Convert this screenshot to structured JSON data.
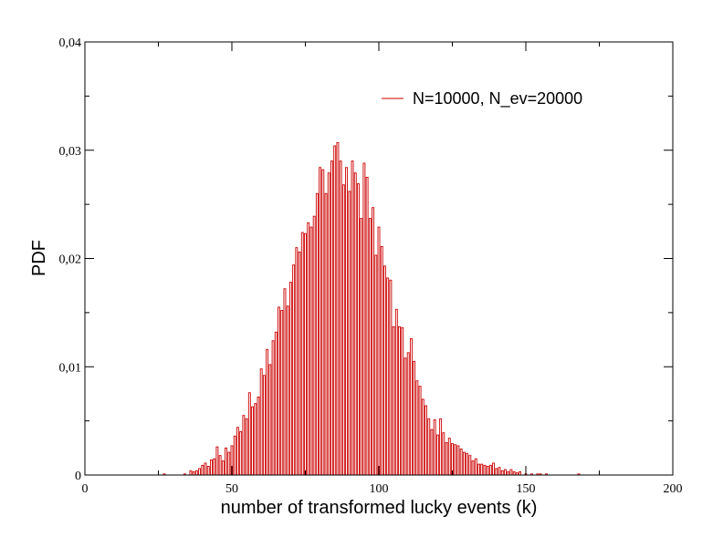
{
  "chart_data": {
    "type": "bar",
    "title": "",
    "xlabel": "number of transformed lucky events (k)",
    "ylabel": "PDF",
    "xlim": [
      0,
      200
    ],
    "ylim": [
      0,
      0.04
    ],
    "x_ticks": [
      0,
      50,
      100,
      150,
      200
    ],
    "x_tick_labels": [
      "0",
      "50",
      "100",
      "150",
      "200"
    ],
    "y_ticks": [
      0,
      0.01,
      0.02,
      0.03,
      0.04
    ],
    "y_tick_labels": [
      "0",
      "0,01",
      "0,02",
      "0,03",
      "0,04"
    ],
    "grid": false,
    "legend_position": "top-right",
    "bar_color": "#cc0000",
    "series": [
      {
        "name": "N=10000, N_ev=20000",
        "x": [
          27,
          34,
          36,
          37,
          38,
          39,
          40,
          41,
          42,
          43,
          44,
          45,
          46,
          47,
          48,
          49,
          50,
          51,
          52,
          53,
          54,
          55,
          56,
          57,
          58,
          59,
          60,
          61,
          62,
          63,
          64,
          65,
          66,
          67,
          68,
          69,
          70,
          71,
          72,
          73,
          74,
          75,
          76,
          77,
          78,
          79,
          80,
          81,
          82,
          83,
          84,
          85,
          86,
          87,
          88,
          89,
          90,
          91,
          92,
          93,
          94,
          95,
          96,
          97,
          98,
          99,
          100,
          101,
          102,
          103,
          104,
          105,
          106,
          107,
          108,
          109,
          110,
          111,
          112,
          113,
          114,
          115,
          116,
          117,
          118,
          119,
          120,
          121,
          122,
          123,
          124,
          125,
          126,
          127,
          128,
          129,
          130,
          131,
          132,
          133,
          134,
          135,
          136,
          137,
          138,
          139,
          140,
          141,
          142,
          143,
          144,
          145,
          146,
          147,
          148,
          150,
          152,
          154,
          155,
          157,
          168
        ],
        "values": [
          0.0001,
          0.0001,
          0.0004,
          0.0003,
          0.0004,
          0.0006,
          0.0009,
          0.0011,
          0.0008,
          0.0014,
          0.0015,
          0.0026,
          0.0018,
          0.0013,
          0.0025,
          0.0021,
          0.0027,
          0.0036,
          0.0044,
          0.004,
          0.0055,
          0.0052,
          0.0076,
          0.0063,
          0.0066,
          0.0072,
          0.0098,
          0.0092,
          0.0116,
          0.0102,
          0.0124,
          0.0132,
          0.0155,
          0.0152,
          0.0172,
          0.0156,
          0.0178,
          0.0194,
          0.021,
          0.0206,
          0.0224,
          0.0223,
          0.0233,
          0.0229,
          0.0239,
          0.026,
          0.0284,
          0.0282,
          0.026,
          0.0279,
          0.029,
          0.0304,
          0.0307,
          0.029,
          0.0268,
          0.0284,
          0.0262,
          0.029,
          0.0279,
          0.0269,
          0.0237,
          0.0288,
          0.0275,
          0.0237,
          0.0247,
          0.0203,
          0.0229,
          0.0211,
          0.0193,
          0.0182,
          0.018,
          0.0137,
          0.0153,
          0.0137,
          0.0136,
          0.0108,
          0.0113,
          0.0126,
          0.0105,
          0.0087,
          0.0082,
          0.007,
          0.0064,
          0.0052,
          0.0042,
          0.0051,
          0.0037,
          0.0052,
          0.0039,
          0.003,
          0.0034,
          0.0029,
          0.0028,
          0.0027,
          0.0024,
          0.0021,
          0.002,
          0.0018,
          0.0013,
          0.0015,
          0.001,
          0.001,
          0.0009,
          0.0008,
          0.0009,
          0.0011,
          0.0006,
          0.0007,
          0.0004,
          0.0005,
          0.0003,
          0.0005,
          0.0003,
          0.0002,
          0.0003,
          0.0001,
          0.0001,
          0.0001,
          0.0001,
          0.0001,
          0.0001
        ]
      }
    ]
  }
}
